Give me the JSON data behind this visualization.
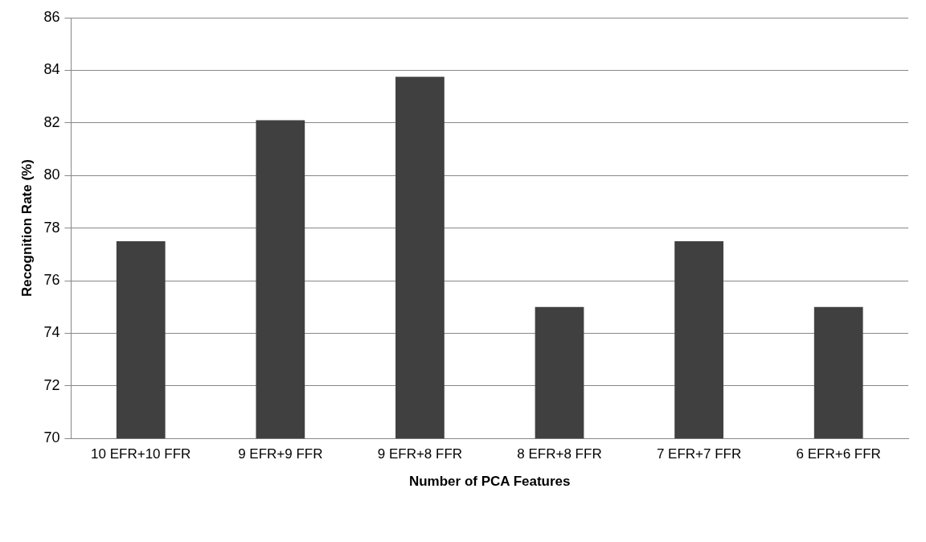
{
  "chart_data": {
    "type": "bar",
    "xlabel": "Number of PCA Features",
    "ylabel": "Recognition Rate (%)",
    "categories": [
      "10 EFR+10 FFR",
      "9 EFR+9 FFR",
      "9 EFR+8 FFR",
      "8 EFR+8 FFR",
      "7 EFR+7 FFR",
      "6 EFR+6 FFR"
    ],
    "values": [
      77.5,
      82.1,
      83.75,
      75,
      77.5,
      75
    ],
    "color": "#404040",
    "ylim": [
      70,
      86
    ],
    "yticks": [
      70,
      72,
      74,
      76,
      78,
      80,
      82,
      84,
      86
    ],
    "grid": "y",
    "legend": false
  }
}
